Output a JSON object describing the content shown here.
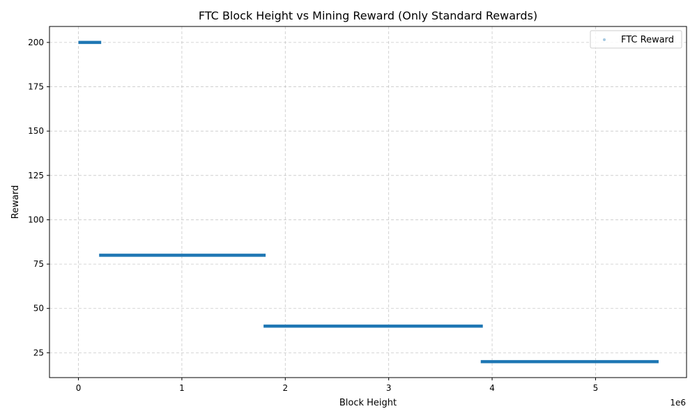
{
  "chart_data": {
    "type": "scatter",
    "title": "FTC Block Height vs Mining Reward (Only Standard Rewards)",
    "xlabel": "Block Height",
    "ylabel": "Reward",
    "x_offset_label": "1e6",
    "xlim": [
      -280000,
      5880000
    ],
    "ylim": [
      11,
      209
    ],
    "xticks": [
      0,
      1000000,
      2000000,
      3000000,
      4000000,
      5000000
    ],
    "xtick_labels": [
      "0",
      "1",
      "2",
      "3",
      "4",
      "5"
    ],
    "yticks": [
      25,
      50,
      75,
      100,
      125,
      150,
      175,
      200
    ],
    "ytick_labels": [
      "25",
      "50",
      "75",
      "100",
      "125",
      "150",
      "175",
      "200"
    ],
    "grid": true,
    "legend": {
      "position": "top-right",
      "entries": [
        "FTC Reward"
      ]
    },
    "color": "#1f77b4",
    "series": [
      {
        "name": "FTC Reward",
        "segments": [
          {
            "x_start": 0,
            "x_end": 220000,
            "y": 200
          },
          {
            "x_start": 200000,
            "x_end": 1810000,
            "y": 80
          },
          {
            "x_start": 1790000,
            "x_end": 3910000,
            "y": 40
          },
          {
            "x_start": 3890000,
            "x_end": 5610000,
            "y": 20
          }
        ]
      }
    ]
  }
}
